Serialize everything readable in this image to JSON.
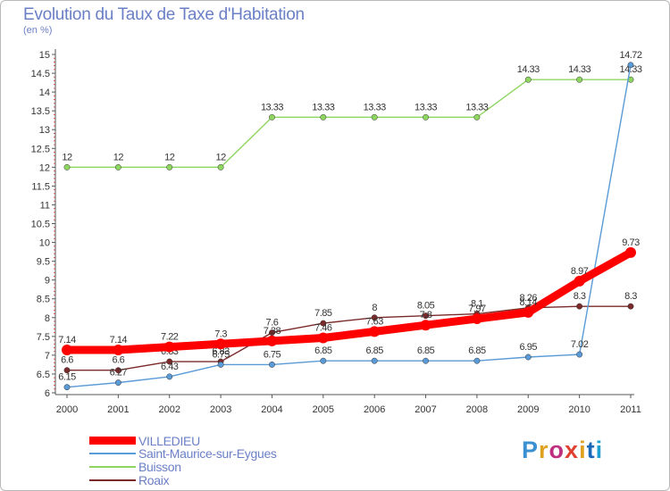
{
  "title": "Evolution du Taux de Taxe d'Habitation",
  "subtitle": "(en %)",
  "brand": {
    "parts": [
      "P",
      "r",
      "o",
      "x",
      "i",
      "t",
      "i"
    ]
  },
  "chart_data": {
    "type": "line",
    "title": "Evolution du Taux de Taxe d'Habitation",
    "ylabel": "(en %)",
    "xlabel": "",
    "ylim": [
      6,
      15
    ],
    "yticks": [
      "6",
      "6.5",
      "7",
      "7.5",
      "8",
      "8.5",
      "9",
      "9.5",
      "10",
      "10.5",
      "11",
      "11.5",
      "12",
      "12.5",
      "13",
      "13.5",
      "14",
      "14.5",
      "15"
    ],
    "categories": [
      "2000",
      "2001",
      "2002",
      "2003",
      "2004",
      "2005",
      "2006",
      "2007",
      "2008",
      "2009",
      "2010",
      "2011"
    ],
    "series": [
      {
        "name": "Roaix",
        "color": "#7a2a2a",
        "values": [
          6.6,
          6.6,
          6.83,
          6.83,
          7.6,
          7.85,
          8,
          8.05,
          8.1,
          8.26,
          8.3,
          8.3
        ],
        "labels": [
          "6.6",
          "6.6",
          "6.83",
          "6.83",
          "7.6",
          "7.85",
          "8",
          "8.05",
          "8.1",
          "8.26",
          "8.3",
          "8.3"
        ]
      },
      {
        "name": "Buisson",
        "color": "#8ed660",
        "values": [
          12,
          12,
          12,
          12,
          13.33,
          13.33,
          13.33,
          13.33,
          13.33,
          14.33,
          14.33,
          14.33
        ],
        "labels": [
          "12",
          "12",
          "12",
          "12",
          "13.33",
          "13.33",
          "13.33",
          "13.33",
          "13.33",
          "14.33",
          "14.33",
          "14.33"
        ]
      },
      {
        "name": "Saint-Maurice-sur-Eygues",
        "color": "#5a9ad6",
        "values": [
          6.15,
          6.27,
          6.43,
          6.75,
          6.75,
          6.85,
          6.85,
          6.85,
          6.85,
          6.95,
          7.02,
          14.72
        ],
        "labels": [
          "6.15",
          "6.27",
          "6.43",
          "6.75",
          "6.75",
          "6.85",
          "6.85",
          "6.85",
          "6.85",
          "6.95",
          "7.02",
          "14.72"
        ]
      },
      {
        "name": "VILLEDIEU",
        "color": "#ff0000",
        "values": [
          7.14,
          7.14,
          7.22,
          7.3,
          7.38,
          7.46,
          7.63,
          7.8,
          7.97,
          8.14,
          8.97,
          9.73
        ],
        "labels": [
          "7.14",
          "7.14",
          "7.22",
          "7.3",
          "7.38",
          "7.46",
          "7.63",
          "7.8",
          "7.97",
          "8.14",
          "8.97",
          "9.73"
        ]
      }
    ],
    "legend": [
      {
        "name": "VILLEDIEU",
        "color": "#ff0000"
      },
      {
        "name": "Saint-Maurice-sur-Eygues",
        "color": "#5a9ad6"
      },
      {
        "name": "Buisson",
        "color": "#8ed660"
      },
      {
        "name": "Roaix",
        "color": "#7a2a2a"
      }
    ]
  }
}
